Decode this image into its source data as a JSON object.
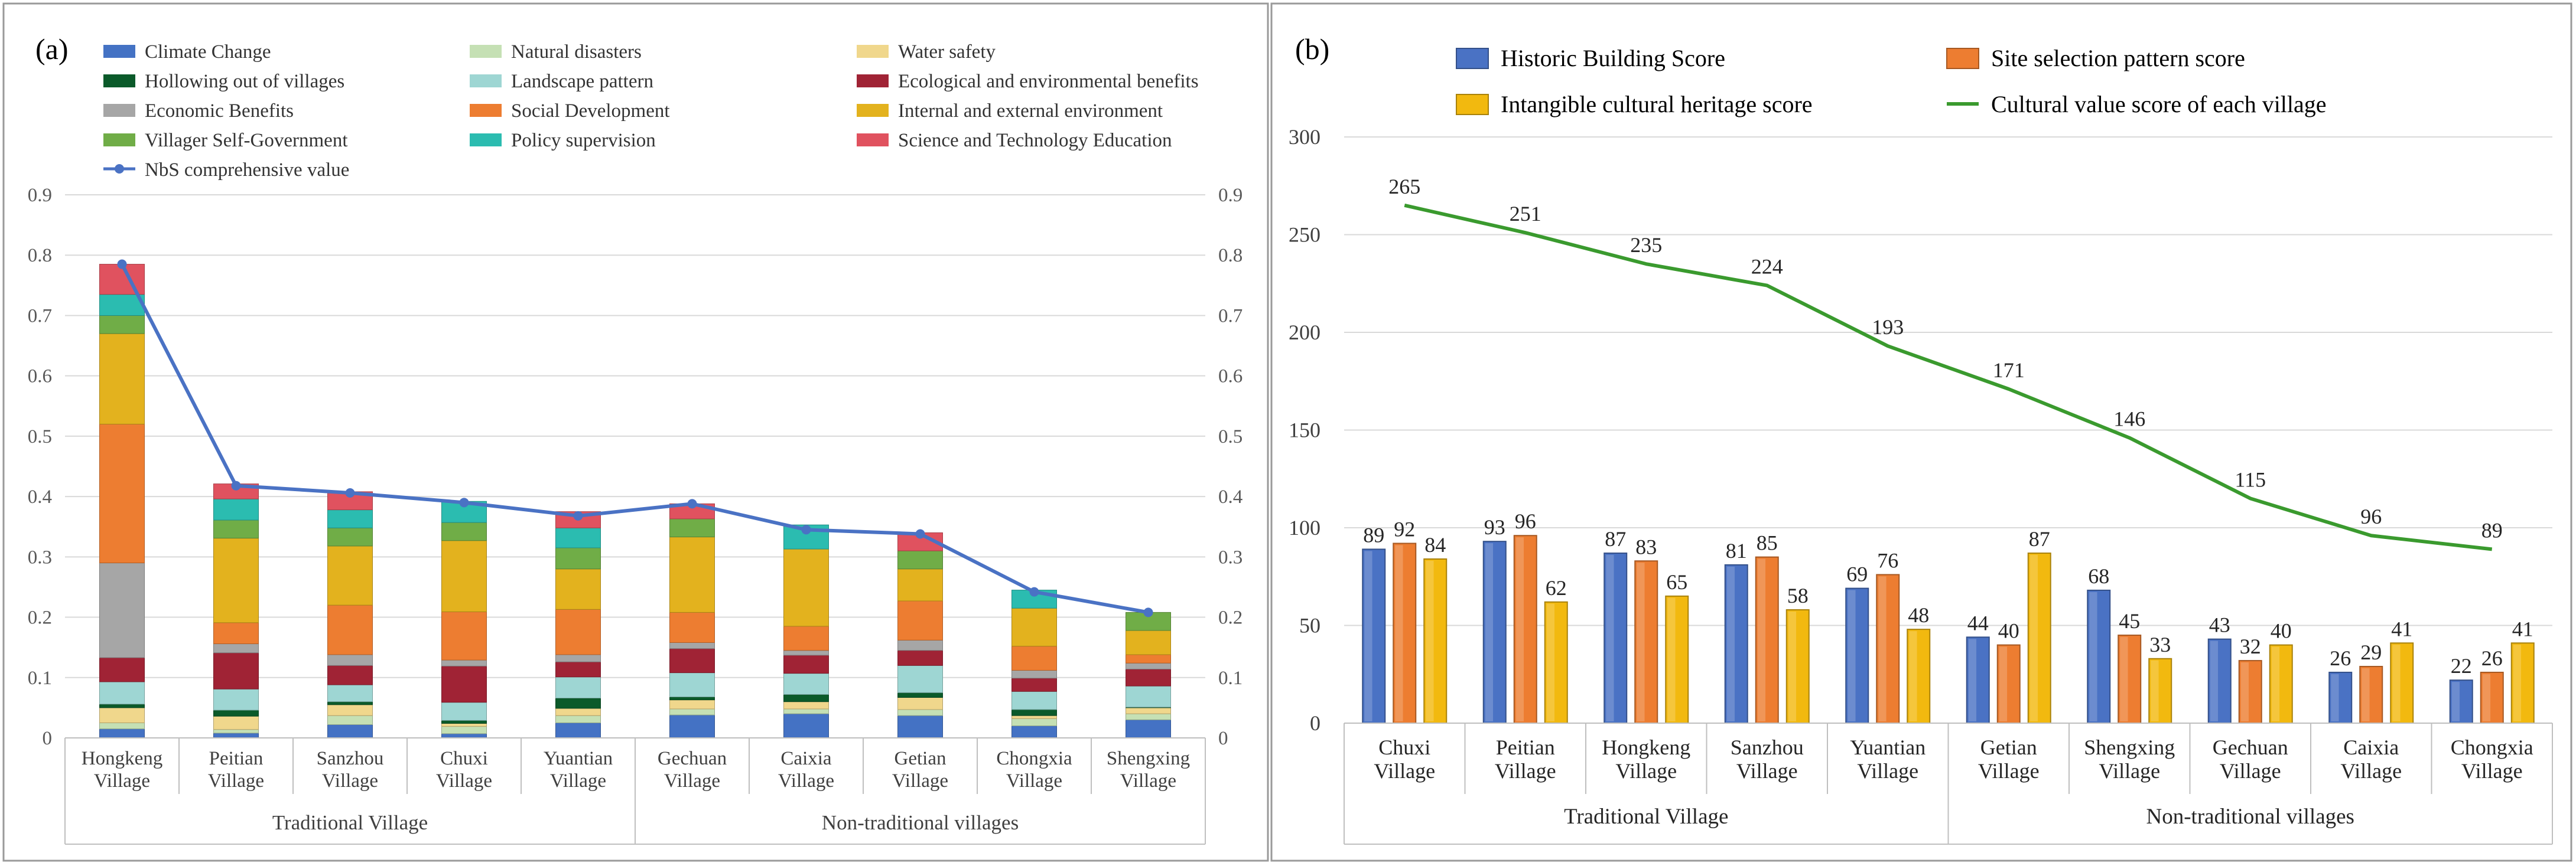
{
  "chart_data": [
    {
      "panel_label": "(a)",
      "type": "bar",
      "stacked": true,
      "categories": [
        "Hongkeng Village",
        "Peitian Village",
        "Sanzhou Village",
        "Chuxi Village",
        "Yuantian Village",
        "Gechuan Village",
        "Caixia Village",
        "Getian Village",
        "Chongxia Village",
        "Shengxing Village"
      ],
      "category_groups": [
        {
          "label": "Traditional Village",
          "count": 5
        },
        {
          "label": "Non-traditional villages",
          "count": 5
        }
      ],
      "ylim": [
        0,
        0.9
      ],
      "yticks": [
        "0",
        "0.1",
        "0.2",
        "0.3",
        "0.4",
        "0.5",
        "0.6",
        "0.7",
        "0.8",
        "0.9"
      ],
      "grid": true,
      "series": [
        {
          "name": "Climate Change",
          "color": "#4472c4",
          "values": [
            0.015,
            0.008,
            0.022,
            0.007,
            0.025,
            0.038,
            0.04,
            0.037,
            0.02,
            0.03
          ]
        },
        {
          "name": "Natural disasters",
          "color": "#c5e0b4",
          "values": [
            0.01,
            0.006,
            0.015,
            0.012,
            0.012,
            0.01,
            0.008,
            0.01,
            0.012,
            0.01
          ]
        },
        {
          "name": "Water safety",
          "color": "#f0d78c",
          "values": [
            0.025,
            0.022,
            0.018,
            0.005,
            0.012,
            0.015,
            0.012,
            0.02,
            0.005,
            0.01
          ]
        },
        {
          "name": "Hollowing out of villages",
          "color": "#0b5a2a",
          "values": [
            0.006,
            0.01,
            0.005,
            0.005,
            0.017,
            0.005,
            0.012,
            0.008,
            0.01,
            0.001
          ]
        },
        {
          "name": "Landscape pattern",
          "color": "#9ed6d3",
          "values": [
            0.037,
            0.035,
            0.028,
            0.03,
            0.035,
            0.04,
            0.035,
            0.045,
            0.03,
            0.035
          ]
        },
        {
          "name": "Ecological and environmental benefits",
          "color": "#a02335",
          "values": [
            0.04,
            0.06,
            0.032,
            0.06,
            0.025,
            0.04,
            0.03,
            0.025,
            0.022,
            0.028
          ]
        },
        {
          "name": "Economic Benefits",
          "color": "#a6a6a6",
          "values": [
            0.157,
            0.015,
            0.018,
            0.01,
            0.012,
            0.01,
            0.008,
            0.017,
            0.013,
            0.01
          ]
        },
        {
          "name": "Social Development",
          "color": "#ed7d31",
          "values": [
            0.23,
            0.035,
            0.082,
            0.08,
            0.075,
            0.05,
            0.04,
            0.065,
            0.04,
            0.014
          ]
        },
        {
          "name": "Internal and external environment",
          "color": "#e3b21e",
          "values": [
            0.15,
            0.14,
            0.098,
            0.118,
            0.067,
            0.125,
            0.128,
            0.053,
            0.063,
            0.04
          ]
        },
        {
          "name": "Villager Self-Government",
          "color": "#70ad47",
          "values": [
            0.03,
            0.03,
            0.03,
            0.03,
            0.035,
            0.03,
            0.0,
            0.03,
            0.0,
            0.03
          ]
        },
        {
          "name": "Policy supervision",
          "color": "#2bbcb0",
          "values": [
            0.035,
            0.035,
            0.03,
            0.035,
            0.033,
            0.0,
            0.04,
            0.0,
            0.03,
            0.0
          ]
        },
        {
          "name": "Science and Technology Education",
          "color": "#e0525f",
          "values": [
            0.05,
            0.025,
            0.03,
            0.0,
            0.027,
            0.025,
            0.0,
            0.03,
            0.0,
            0.0
          ]
        }
      ],
      "line": {
        "name": "NbS comprehensive value",
        "color": "#4a72c4",
        "values": [
          0.785,
          0.418,
          0.406,
          0.39,
          0.368,
          0.388,
          0.345,
          0.338,
          0.242,
          0.208
        ]
      }
    },
    {
      "panel_label": "(b)",
      "type": "bar",
      "categories": [
        "Chuxi Village",
        "Peitian Village",
        "Hongkeng Village",
        "Sanzhou Village",
        "Yuantian Village",
        "Getian Village",
        "Shengxing Village",
        "Gechuan Village",
        "Caixia Village",
        "Chongxia Village"
      ],
      "category_groups": [
        {
          "label": "Traditional Village",
          "count": 5
        },
        {
          "label": "Non-traditional villages",
          "count": 5
        }
      ],
      "ylim": [
        0,
        300
      ],
      "yticks": [
        "0",
        "50",
        "100",
        "150",
        "200",
        "250",
        "300"
      ],
      "grid": true,
      "series": [
        {
          "name": "Historic Building Score",
          "color": "#4a72c4",
          "values": [
            89,
            93,
            87,
            81,
            69,
            44,
            68,
            43,
            26,
            22
          ]
        },
        {
          "name": "Site selection pattern score",
          "color": "#ed7d31",
          "values": [
            92,
            96,
            83,
            85,
            76,
            40,
            45,
            32,
            29,
            26
          ]
        },
        {
          "name": "Intangible cultural heritage score",
          "color": "#f2b90f",
          "values": [
            84,
            62,
            65,
            58,
            48,
            87,
            33,
            40,
            41,
            41
          ]
        }
      ],
      "line": {
        "name": "Cultural value score of each village",
        "color": "#3a9a2e",
        "values": [
          265,
          251,
          235,
          224,
          193,
          171,
          146,
          115,
          96,
          89
        ]
      }
    }
  ]
}
